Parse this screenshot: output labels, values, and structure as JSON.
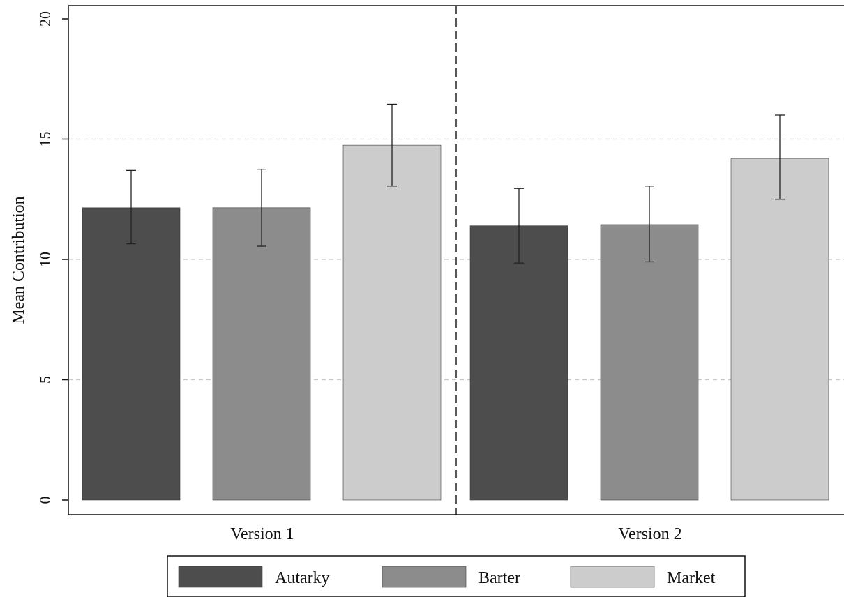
{
  "chart_data": {
    "type": "bar",
    "title": "",
    "xlabel": "",
    "ylabel": "Mean Contribution",
    "ylim": [
      0,
      20
    ],
    "yticks": [
      0,
      5,
      10,
      15,
      20
    ],
    "categories": [
      "Version 1",
      "Version 2"
    ],
    "series": [
      {
        "name": "Autarky",
        "color": "#4d4d4d",
        "values": [
          12.15,
          11.4
        ],
        "error_low": [
          10.65,
          9.85
        ],
        "error_high": [
          13.7,
          12.95
        ]
      },
      {
        "name": "Barter",
        "color": "#8c8c8c",
        "values": [
          12.15,
          11.45
        ],
        "error_low": [
          10.55,
          9.9
        ],
        "error_high": [
          13.75,
          13.05
        ]
      },
      {
        "name": "Market",
        "color": "#cccccc",
        "values": [
          14.75,
          14.2
        ],
        "error_low": [
          13.05,
          12.5
        ],
        "error_high": [
          16.45,
          16.0
        ]
      }
    ],
    "grid": {
      "horizontal": true,
      "style": "dashed"
    },
    "legend": {
      "position": "bottom"
    },
    "group_separator": "dashed"
  }
}
